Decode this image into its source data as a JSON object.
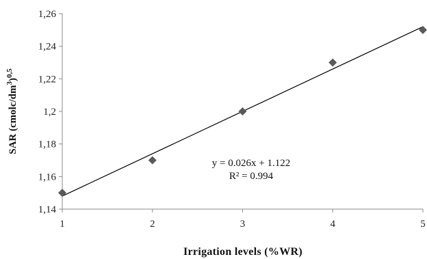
{
  "chart_data": {
    "type": "scatter",
    "title": "",
    "xlabel": "Irrigation levels (%WR)",
    "ylabel_main": "SAR (cmolc/dm",
    "ylabel_sup1": "3",
    "ylabel_mid": ")",
    "ylabel_sup2": "0,5",
    "x": [
      1,
      2,
      3,
      4,
      5
    ],
    "y": [
      1.15,
      1.17,
      1.2,
      1.23,
      1.25
    ],
    "xlim": [
      1,
      5
    ],
    "ylim": [
      1.14,
      1.26
    ],
    "x_ticks": [
      "1",
      "2",
      "3",
      "4",
      "5"
    ],
    "y_ticks": [
      "1,14",
      "1,16",
      "1,18",
      "1,2",
      "1,22",
      "1,24",
      "1,26"
    ],
    "y_tick_values": [
      1.14,
      1.16,
      1.18,
      1.2,
      1.22,
      1.24,
      1.26
    ],
    "grid": false,
    "marker": "diamond",
    "marker_color": "#5a5a5a",
    "trendline": {
      "slope": 0.026,
      "intercept": 1.122,
      "equation": "y = 0.026x + 1.122",
      "r2": "R² = 0.994"
    }
  }
}
